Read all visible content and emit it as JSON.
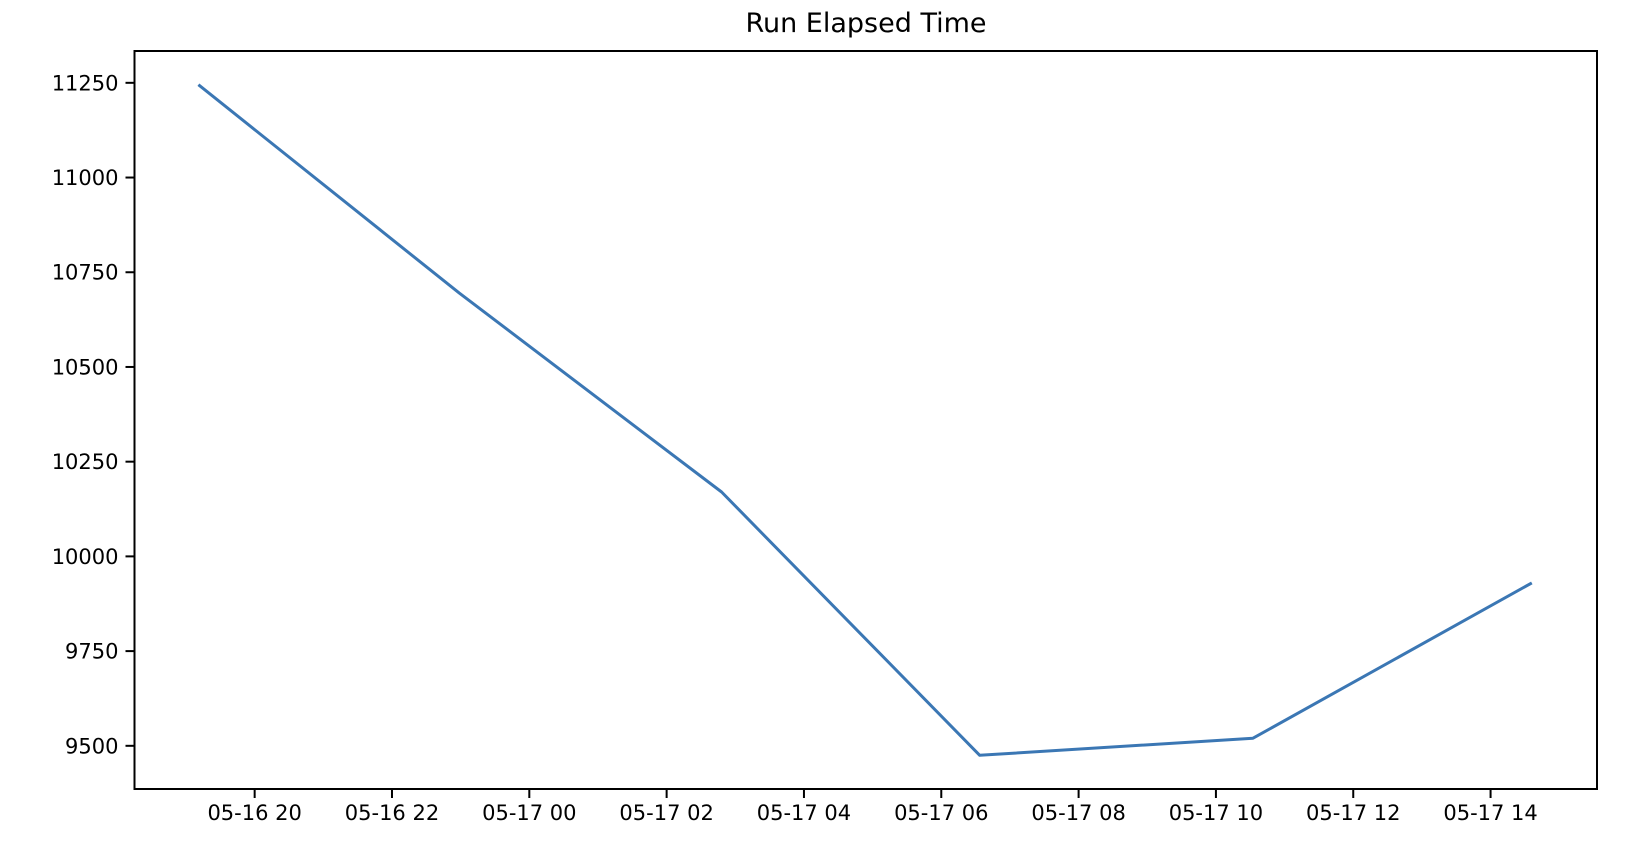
{
  "figure": {
    "title": "Run Elapsed Time",
    "background_color": "#ffffff",
    "axes_color": "#000000"
  },
  "chart_data": {
    "type": "line",
    "title": "Run Elapsed Time",
    "xlabel": "",
    "ylabel": "",
    "grid": false,
    "legend": "none",
    "line_color": "#3b77b4",
    "line_width": 3,
    "x_axis": {
      "kind": "datetime",
      "tick_labels": [
        "05-16 20",
        "05-16 22",
        "05-17 00",
        "05-17 02",
        "05-17 04",
        "05-17 06",
        "05-17 08",
        "05-17 10",
        "05-17 12",
        "05-17 14"
      ],
      "tick_hours": [
        20,
        22,
        24,
        26,
        28,
        30,
        32,
        34,
        36,
        38
      ],
      "lim_hours": [
        18.25,
        39.55
      ]
    },
    "y_axis": {
      "tick_values": [
        9500,
        9750,
        10000,
        10250,
        10500,
        10750,
        11000,
        11250
      ],
      "lim": [
        9386,
        11334
      ]
    },
    "series": [
      {
        "name": "Run Elapsed Time",
        "points": [
          {
            "time": "05-16 ~19:10",
            "hour": 19.18,
            "value": 11245
          },
          {
            "time": "05-16 ~23:00",
            "hour": 22.98,
            "value": 10695
          },
          {
            "time": "05-17 ~02:50",
            "hour": 26.8,
            "value": 10170
          },
          {
            "time": "05-17 ~06:35",
            "hour": 30.56,
            "value": 9475
          },
          {
            "time": "05-17 ~10:30",
            "hour": 34.54,
            "value": 9520
          },
          {
            "time": "05-17 ~14:35",
            "hour": 38.6,
            "value": 9930
          }
        ]
      }
    ]
  }
}
